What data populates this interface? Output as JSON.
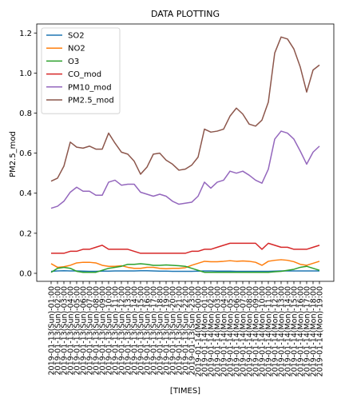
{
  "chart_data": {
    "type": "line",
    "title": "DATA PLOTTING",
    "xlabel": "[TIMES]",
    "ylabel": "PM2.5_mod",
    "ylim": [
      -0.04,
      1.245
    ],
    "yticks": [
      0.0,
      0.2,
      0.4,
      0.6,
      0.8,
      1.0,
      1.2
    ],
    "ytick_labels": [
      "0.0",
      "0.2",
      "0.4",
      "0.6",
      "0.8",
      "1.0",
      "1.2"
    ],
    "grid": false,
    "legend_position": "top-left",
    "x": [
      "2019-01-13(Sun)-01:00",
      "2019-01-13(Sun)-02:00",
      "2019-01-13(Sun)-03:00",
      "2019-01-13(Sun)-04:00",
      "2019-01-13(Sun)-05:00",
      "2019-01-13(Sun)-06:00",
      "2019-01-13(Sun)-07:00",
      "2019-01-13(Sun)-08:00",
      "2019-01-13(Sun)-09:00",
      "2019-01-13(Sun)-10:00",
      "2019-01-13(Sun)-11:00",
      "2019-01-13(Sun)-12:00",
      "2019-01-13(Sun)-13:00",
      "2019-01-13(Sun)-14:00",
      "2019-01-13(Sun)-15:00",
      "2019-01-13(Sun)-16:00",
      "2019-01-13(Sun)-17:00",
      "2019-01-13(Sun)-18:00",
      "2019-01-13(Sun)-19:00",
      "2019-01-13(Sun)-20:00",
      "2019-01-13(Sun)-21:00",
      "2019-01-13(Sun)-22:00",
      "2019-01-13(Sun)-23:00",
      "2019-01-14(Mon)-00:00",
      "2019-01-14(Mon)-01:00",
      "2019-01-14(Mon)-02:00",
      "2019-01-14(Mon)-03:00",
      "2019-01-14(Mon)-04:00",
      "2019-01-14(Mon)-05:00",
      "2019-01-14(Mon)-06:00",
      "2019-01-14(Mon)-07:00",
      "2019-01-14(Mon)-08:00",
      "2019-01-14(Mon)-09:00",
      "2019-01-14(Mon)-10:00",
      "2019-01-14(Mon)-11:00",
      "2019-01-14(Mon)-12:00",
      "2019-01-14(Mon)-13:00",
      "2019-01-14(Mon)-14:00",
      "2019-01-14(Mon)-15:00",
      "2019-01-14(Mon)-16:00",
      "2019-01-14(Mon)-17:00",
      "2019-01-14(Mon)-18:00",
      "2019-01-14(Mon)-19:00"
    ],
    "series": [
      {
        "name": "SO2",
        "color": "#1f77b4",
        "values": [
          0.01,
          0.012,
          0.013,
          0.012,
          0.012,
          0.011,
          0.01,
          0.01,
          0.011,
          0.011,
          0.012,
          0.012,
          0.012,
          0.012,
          0.013,
          0.013,
          0.012,
          0.011,
          0.011,
          0.01,
          0.01,
          0.01,
          0.01,
          0.011,
          0.012,
          0.012,
          0.011,
          0.011,
          0.011,
          0.01,
          0.01,
          0.01,
          0.01,
          0.01,
          0.01,
          0.011,
          0.012,
          0.012,
          0.012,
          0.012,
          0.012,
          0.012,
          0.012
        ]
      },
      {
        "name": "NO2",
        "color": "#ff7f0e",
        "values": [
          0.048,
          0.03,
          0.033,
          0.04,
          0.052,
          0.055,
          0.055,
          0.052,
          0.04,
          0.035,
          0.035,
          0.038,
          0.03,
          0.025,
          0.025,
          0.03,
          0.03,
          0.025,
          0.023,
          0.025,
          0.025,
          0.028,
          0.04,
          0.05,
          0.06,
          0.058,
          0.058,
          0.06,
          0.063,
          0.06,
          0.062,
          0.06,
          0.055,
          0.04,
          0.06,
          0.065,
          0.068,
          0.065,
          0.058,
          0.045,
          0.04,
          0.05,
          0.06
        ]
      },
      {
        "name": "O3",
        "color": "#2ca02c",
        "values": [
          0.005,
          0.025,
          0.03,
          0.025,
          0.01,
          0.005,
          0.005,
          0.005,
          0.015,
          0.025,
          0.03,
          0.035,
          0.045,
          0.045,
          0.048,
          0.045,
          0.04,
          0.04,
          0.042,
          0.04,
          0.038,
          0.035,
          0.025,
          0.015,
          0.005,
          0.005,
          0.005,
          0.005,
          0.005,
          0.005,
          0.005,
          0.005,
          0.005,
          0.005,
          0.005,
          0.008,
          0.01,
          0.015,
          0.02,
          0.03,
          0.035,
          0.025,
          0.015
        ]
      },
      {
        "name": "CO_mod",
        "color": "#d62728",
        "values": [
          0.1,
          0.1,
          0.1,
          0.11,
          0.11,
          0.12,
          0.12,
          0.13,
          0.14,
          0.12,
          0.12,
          0.12,
          0.12,
          0.11,
          0.1,
          0.1,
          0.1,
          0.1,
          0.1,
          0.1,
          0.1,
          0.1,
          0.11,
          0.11,
          0.12,
          0.12,
          0.13,
          0.14,
          0.15,
          0.15,
          0.15,
          0.15,
          0.15,
          0.12,
          0.15,
          0.14,
          0.13,
          0.13,
          0.12,
          0.12,
          0.12,
          0.13,
          0.14
        ]
      },
      {
        "name": "PM10_mod",
        "color": "#9467bd",
        "values": [
          0.325,
          0.335,
          0.36,
          0.405,
          0.43,
          0.41,
          0.41,
          0.39,
          0.39,
          0.455,
          0.465,
          0.44,
          0.445,
          0.445,
          0.405,
          0.395,
          0.385,
          0.395,
          0.385,
          0.36,
          0.345,
          0.35,
          0.355,
          0.385,
          0.455,
          0.425,
          0.455,
          0.465,
          0.51,
          0.5,
          0.51,
          0.49,
          0.465,
          0.45,
          0.52,
          0.67,
          0.71,
          0.7,
          0.67,
          0.61,
          0.545,
          0.605,
          0.635
        ]
      },
      {
        "name": "PM2.5_mod",
        "color": "#8c564b",
        "values": [
          0.46,
          0.475,
          0.535,
          0.655,
          0.63,
          0.625,
          0.635,
          0.62,
          0.62,
          0.7,
          0.65,
          0.605,
          0.595,
          0.56,
          0.495,
          0.53,
          0.595,
          0.6,
          0.565,
          0.545,
          0.515,
          0.52,
          0.54,
          0.58,
          0.72,
          0.705,
          0.71,
          0.72,
          0.785,
          0.825,
          0.795,
          0.745,
          0.735,
          0.765,
          0.855,
          1.1,
          1.18,
          1.17,
          1.12,
          1.03,
          0.905,
          1.015,
          1.04
        ]
      }
    ]
  }
}
